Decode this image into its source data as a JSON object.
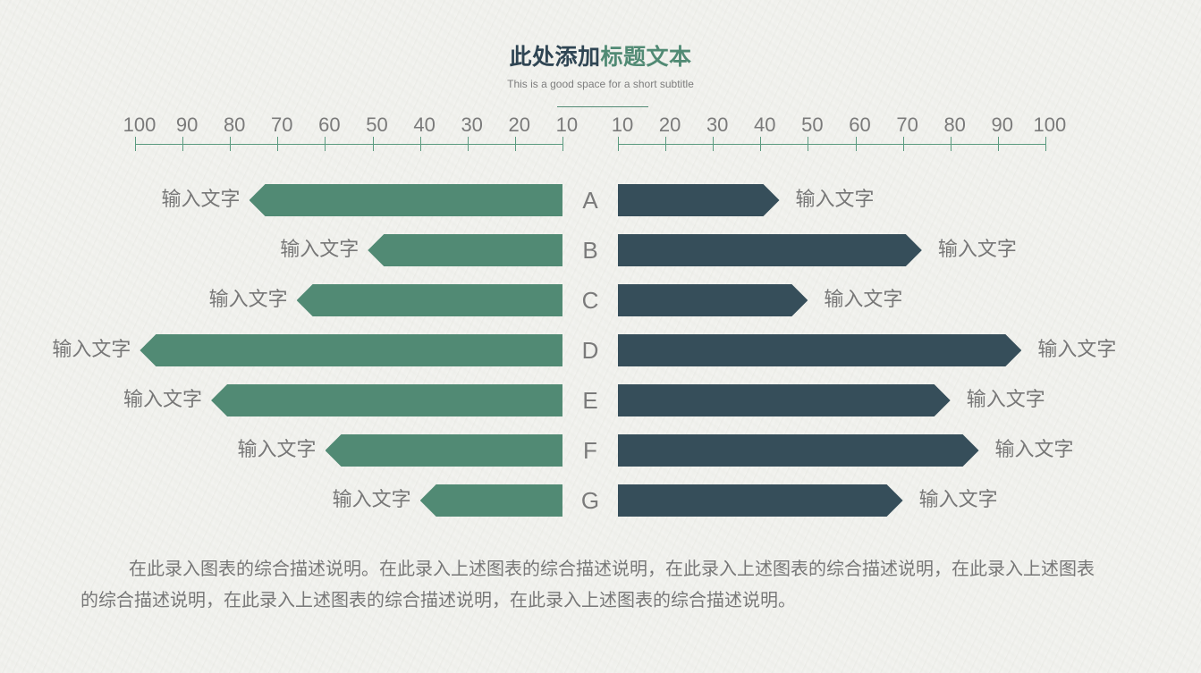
{
  "header": {
    "title_part1": "此处添加",
    "title_part2": "标题文本",
    "subtitle": "This is a good space for a short subtitle"
  },
  "colors": {
    "left_series": "#518a74",
    "right_series": "#364e5a",
    "title_dark": "#2f4553",
    "axis_line": "#5a9a7f",
    "text_gray": "#777777"
  },
  "axes": {
    "left_ticks": [
      "100",
      "90",
      "80",
      "70",
      "60",
      "50",
      "40",
      "30",
      "20",
      "10"
    ],
    "right_ticks": [
      "10",
      "20",
      "30",
      "40",
      "50",
      "60",
      "70",
      "80",
      "90",
      "100"
    ]
  },
  "rows": [
    {
      "category": "A",
      "left_label": "输入文字",
      "right_label": "输入文字"
    },
    {
      "category": "B",
      "left_label": "输入文字",
      "right_label": "输入文字"
    },
    {
      "category": "C",
      "left_label": "输入文字",
      "right_label": "输入文字"
    },
    {
      "category": "D",
      "left_label": "输入文字",
      "right_label": "输入文字"
    },
    {
      "category": "E",
      "left_label": "输入文字",
      "right_label": "输入文字"
    },
    {
      "category": "F",
      "left_label": "输入文字",
      "right_label": "输入文字"
    },
    {
      "category": "G",
      "left_label": "输入文字",
      "right_label": "输入文字"
    }
  ],
  "description": "在此录入图表的综合描述说明。在此录入上述图表的综合描述说明，在此录入上述图表的综合描述说明，在此录入上述图表的综合描述说明，在此录入上述图表的综合描述说明，在此录入上述图表的综合描述说明。",
  "chart_data": {
    "type": "bar",
    "orientation": "horizontal-butterfly",
    "title": "此处添加标题文本",
    "subtitle": "This is a good space for a short subtitle",
    "categories": [
      "A",
      "B",
      "C",
      "D",
      "E",
      "F",
      "G"
    ],
    "series": [
      {
        "name": "left",
        "direction": "left",
        "color": "#518a74",
        "values": [
          76,
          51,
          66,
          99,
          84,
          60,
          40
        ],
        "data_labels": [
          "输入文字",
          "输入文字",
          "输入文字",
          "输入文字",
          "输入文字",
          "输入文字",
          "输入文字"
        ]
      },
      {
        "name": "right",
        "direction": "right",
        "color": "#364e5a",
        "values": [
          44,
          74,
          50,
          95,
          80,
          86,
          70
        ],
        "data_labels": [
          "输入文字",
          "输入文字",
          "输入文字",
          "输入文字",
          "输入文字",
          "输入文字",
          "输入文字"
        ]
      }
    ],
    "x_ticks_left": [
      100,
      90,
      80,
      70,
      60,
      50,
      40,
      30,
      20,
      10
    ],
    "x_ticks_right": [
      10,
      20,
      30,
      40,
      50,
      60,
      70,
      80,
      90,
      100
    ],
    "xlim": [
      10,
      100
    ],
    "xlabel": "",
    "ylabel": "",
    "grid": false,
    "legend": "none"
  }
}
